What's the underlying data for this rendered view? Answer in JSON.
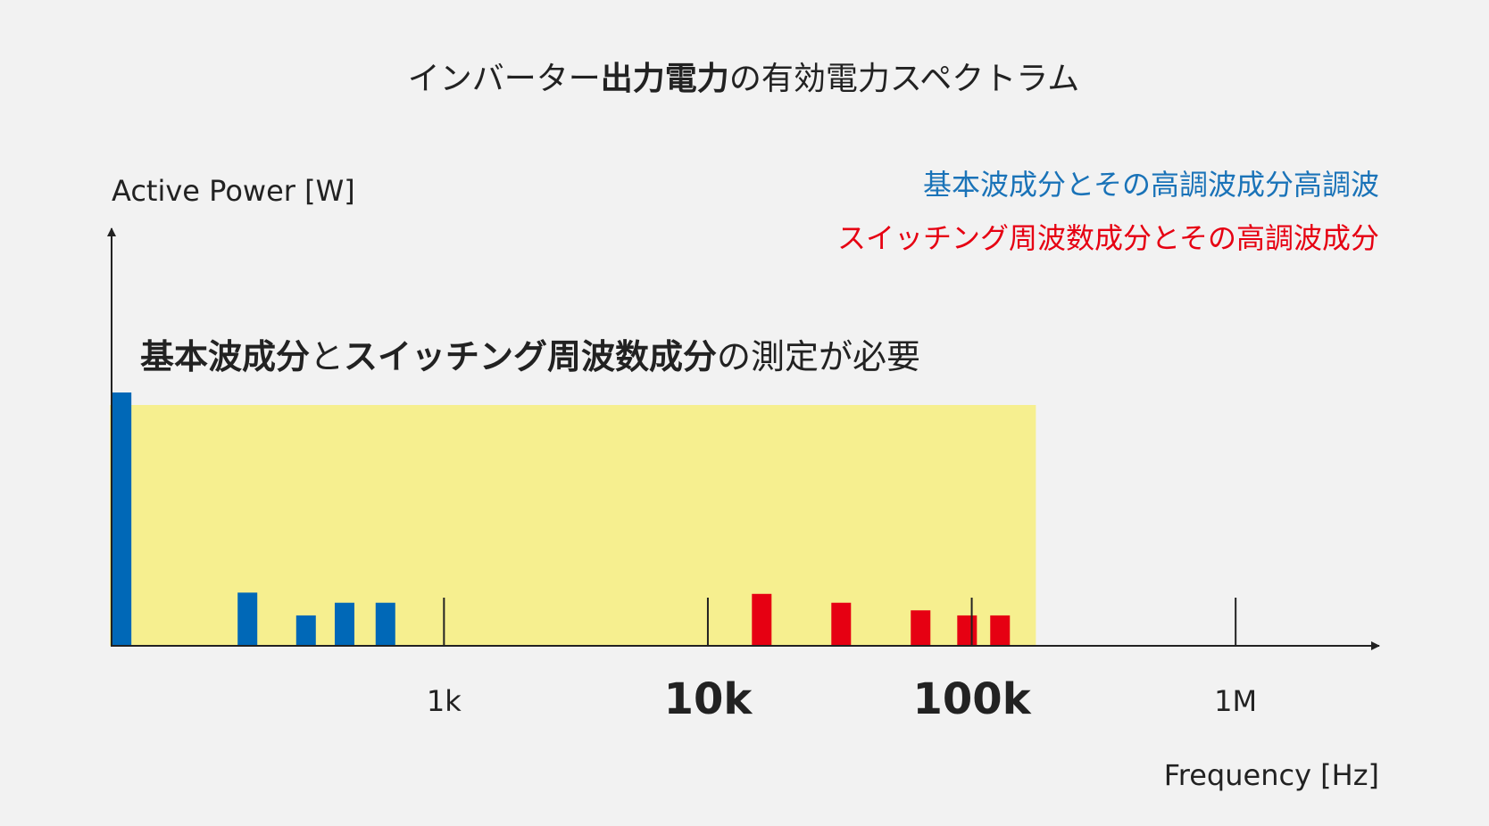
{
  "title": {
    "prefix": "インバーター",
    "bold": "出力電力",
    "suffix": "の有効電力スペクトラム"
  },
  "ylabel": "Active Power [W]",
  "xlabel": "Frequency [Hz]",
  "legend": [
    {
      "text": "基本波成分とその高調波成分高調波",
      "color": "#1a73b8"
    },
    {
      "text": "スイッチング周波数成分とその高調波成分",
      "color": "#e60012"
    }
  ],
  "annotation": {
    "part1_bold": "基本波成分",
    "part2": "と",
    "part3_bold": "スイッチング周波数成分",
    "part4": "の測定が必要"
  },
  "colors": {
    "fundamental": "#0068b7",
    "switching": "#e60012",
    "highlight": "#f6ef8f",
    "axis": "#222222"
  },
  "chart_data": {
    "type": "bar",
    "xscale": "log",
    "xlim": [
      55,
      3500000
    ],
    "ylim": [
      0,
      100
    ],
    "highlight_range": [
      55,
      175000
    ],
    "ticks": [
      {
        "value": 1000,
        "label": "1k",
        "bold": false
      },
      {
        "value": 10000,
        "label": "10k",
        "bold": true
      },
      {
        "value": 100000,
        "label": "100k",
        "bold": true
      },
      {
        "value": 1000000,
        "label": "1M",
        "bold": false
      }
    ],
    "series": [
      {
        "group": "fundamental",
        "x": [
          60,
          180,
          300,
          420,
          600
        ],
        "values": [
          100,
          21,
          12,
          17,
          17
        ]
      },
      {
        "group": "switching",
        "x": [
          16000,
          32000,
          64000,
          96000,
          128000
        ],
        "values": [
          20.5,
          17,
          14,
          12,
          12
        ]
      }
    ]
  }
}
